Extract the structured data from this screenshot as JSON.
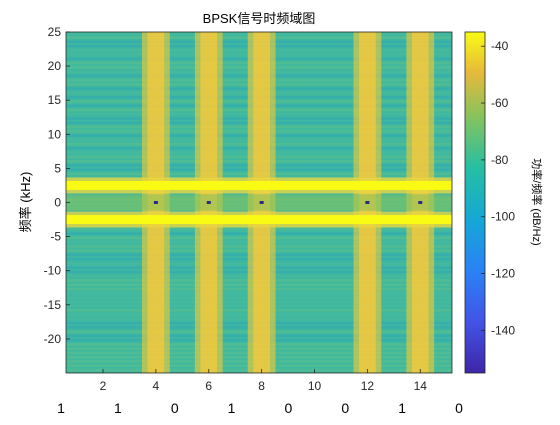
{
  "chart_data": {
    "type": "heatmap",
    "title": "BPSK信号时频域图",
    "xlabel": "",
    "ylabel": "频率 (kHz)",
    "x_ticks": [
      2,
      4,
      6,
      8,
      10,
      12,
      14
    ],
    "xlim": [
      0.6,
      15.2
    ],
    "y_ticks": [
      -20,
      -15,
      -10,
      -5,
      0,
      5,
      10,
      15,
      20,
      25
    ],
    "ylim": [
      -25,
      25
    ],
    "colorbar": {
      "label": "功率/频率 (dB/Hz)",
      "ticks": [
        -140,
        -120,
        -100,
        -80,
        -60,
        -40
      ],
      "range": [
        -155,
        -35
      ],
      "colormap": "parula"
    },
    "bit_sequence": [
      1,
      1,
      0,
      1,
      0,
      0,
      1,
      0
    ],
    "carrier_band_centers_khz": [
      2.5,
      -2.5
    ],
    "high_power_time_bands": [
      4,
      6,
      8,
      12,
      14
    ],
    "colors": {
      "background_noise": "#3fb8a0",
      "high_power": "#f4cc35",
      "carrier_peak": "#f9fb14",
      "null": "#2a2a8a"
    }
  }
}
